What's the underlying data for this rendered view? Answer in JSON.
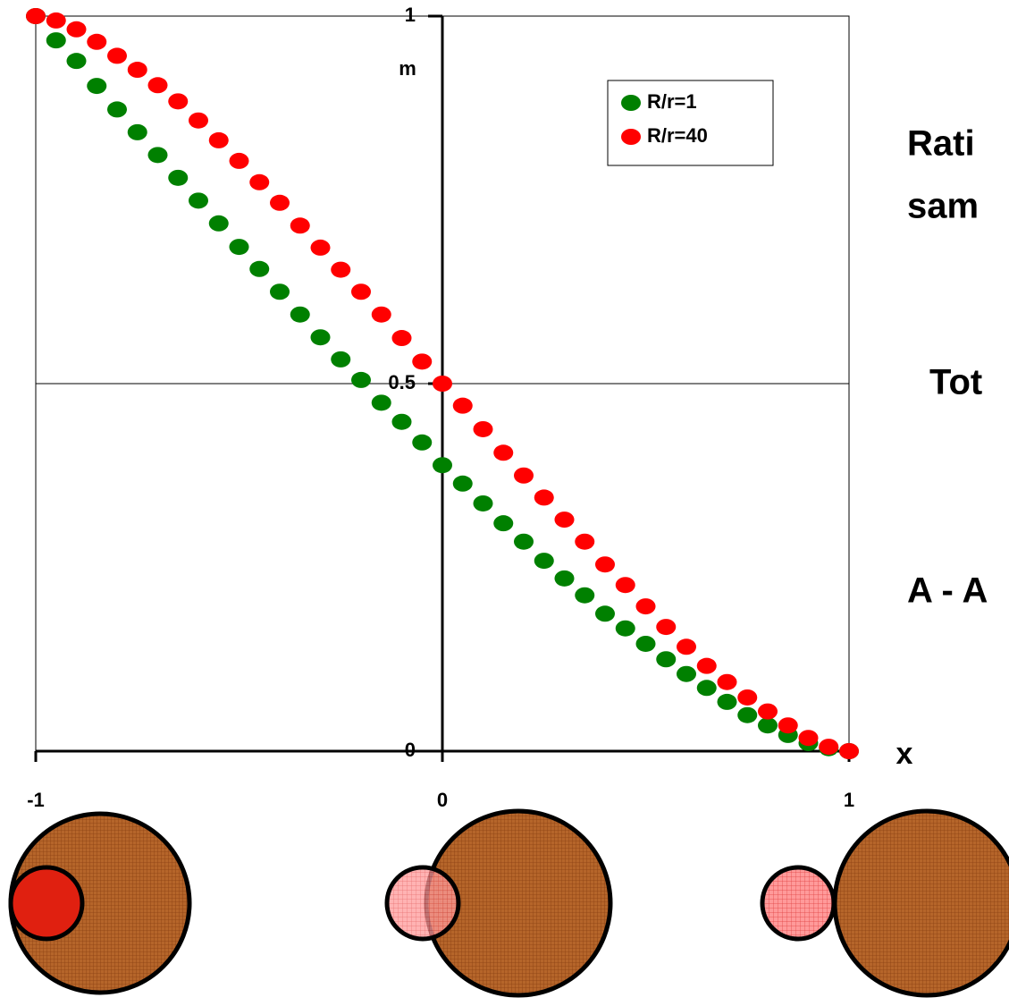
{
  "chart_data": {
    "type": "scatter",
    "x_label": "x",
    "y_label": "m",
    "x": [
      -1,
      -0.95,
      -0.9,
      -0.85,
      -0.8,
      -0.75,
      -0.7,
      -0.65,
      -0.6,
      -0.55,
      -0.5,
      -0.45,
      -0.4,
      -0.35,
      -0.3,
      -0.25,
      -0.2,
      -0.15,
      -0.1,
      -0.05,
      0,
      0.05,
      0.1,
      0.15,
      0.2,
      0.25,
      0.3,
      0.35,
      0.4,
      0.45,
      0.5,
      0.55,
      0.6,
      0.65,
      0.7,
      0.75,
      0.8,
      0.85,
      0.9,
      0.95,
      1
    ],
    "series": [
      {
        "name": "R/r=1",
        "color": "#008000",
        "values": [
          1,
          0.967,
          0.939,
          0.905,
          0.873,
          0.842,
          0.811,
          0.78,
          0.749,
          0.718,
          0.686,
          0.656,
          0.625,
          0.594,
          0.563,
          0.533,
          0.505,
          0.474,
          0.448,
          0.42,
          0.389,
          0.364,
          0.337,
          0.31,
          0.285,
          0.259,
          0.235,
          0.212,
          0.187,
          0.167,
          0.146,
          0.125,
          0.105,
          0.086,
          0.067,
          0.049,
          0.035,
          0.022,
          0.011,
          0.004,
          0
        ]
      },
      {
        "name": "R/r=40",
        "color": "#ff0000",
        "values": [
          1,
          0.994,
          0.982,
          0.965,
          0.946,
          0.927,
          0.906,
          0.884,
          0.858,
          0.831,
          0.803,
          0.774,
          0.746,
          0.715,
          0.685,
          0.655,
          0.625,
          0.594,
          0.562,
          0.53,
          0.5,
          0.47,
          0.438,
          0.406,
          0.375,
          0.345,
          0.315,
          0.285,
          0.254,
          0.226,
          0.197,
          0.169,
          0.142,
          0.116,
          0.094,
          0.073,
          0.054,
          0.035,
          0.018,
          0.006,
          0
        ]
      }
    ],
    "xlim": [
      -1,
      1
    ],
    "ylim": [
      0,
      1
    ],
    "xticks": [
      -1,
      0,
      1
    ],
    "yticks": [
      0,
      0.5,
      1
    ],
    "grid": true,
    "annotations": [
      "Rati",
      "sam",
      "Tot",
      "A - A"
    ]
  }
}
